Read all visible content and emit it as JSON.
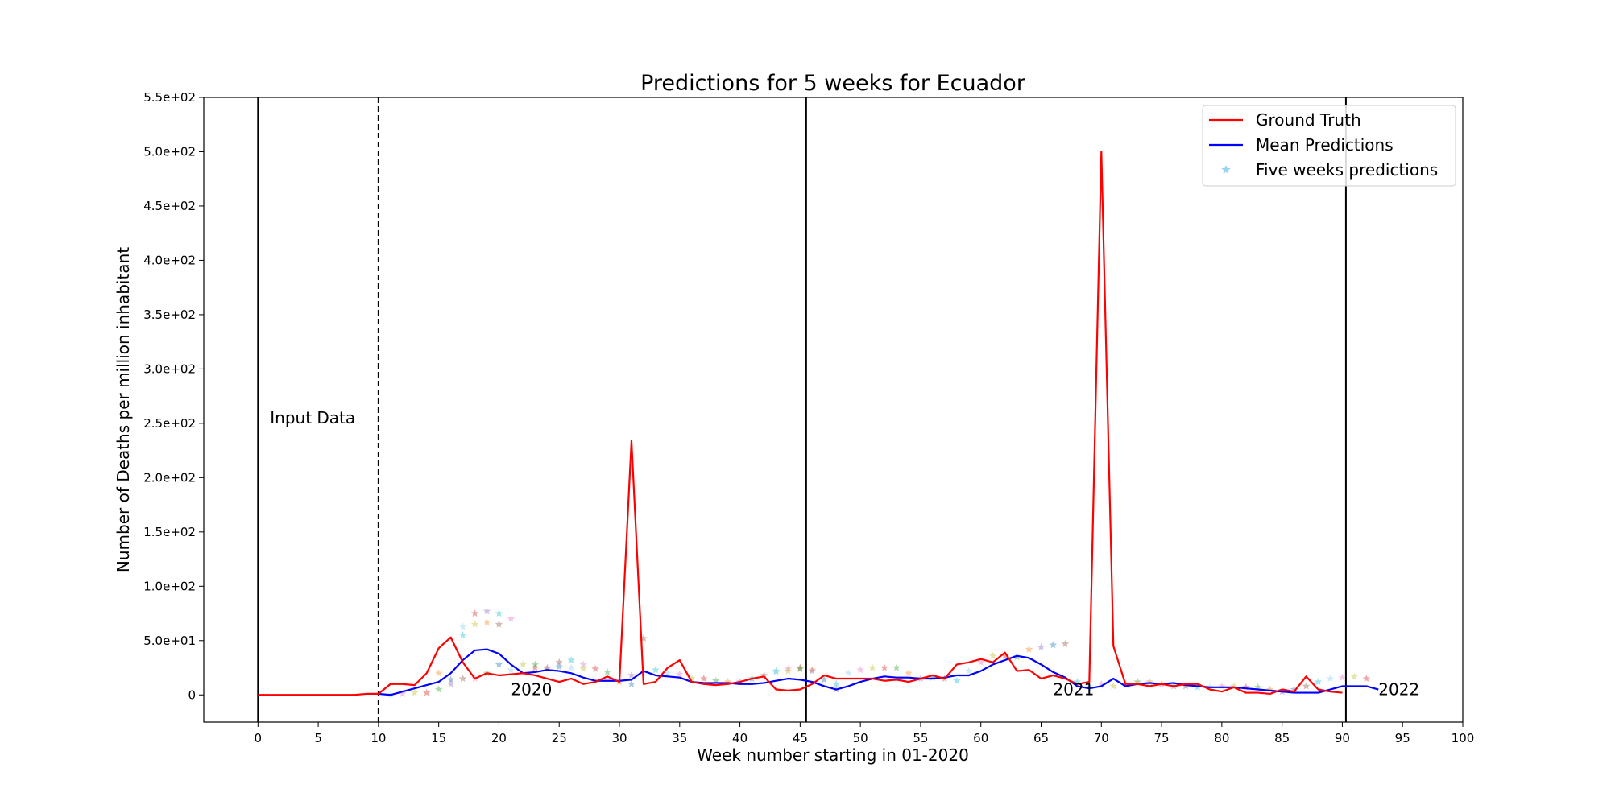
{
  "chart_data": {
    "type": "line",
    "title": "Predictions for 5 weeks for Ecuador",
    "xlabel": "Week number starting in 01-2020",
    "ylabel": "Number of Deaths per million inhabitant",
    "xlim": [
      -4.5,
      100
    ],
    "ylim": [
      -25,
      550
    ],
    "x_ticks": [
      0,
      5,
      10,
      15,
      20,
      25,
      30,
      35,
      40,
      45,
      50,
      55,
      60,
      65,
      70,
      75,
      80,
      85,
      90,
      95,
      100
    ],
    "x_tick_labels": [
      "0",
      "5",
      "10",
      "15",
      "20",
      "25",
      "30",
      "35",
      "40",
      "45",
      "50",
      "55",
      "60",
      "65",
      "70",
      "75",
      "80",
      "85",
      "90",
      "95",
      "100"
    ],
    "y_ticks": [
      0,
      50,
      100,
      150,
      200,
      250,
      300,
      350,
      400,
      450,
      500,
      550
    ],
    "y_tick_labels": [
      "0",
      "5.0e+01",
      "1.0e+02",
      "1.5e+02",
      "2.0e+02",
      "2.5e+02",
      "3.0e+02",
      "3.5e+02",
      "4.0e+02",
      "4.5e+02",
      "5.0e+02",
      "5.5e+02"
    ],
    "grid": false,
    "legend_position": "top-right",
    "vlines": [
      {
        "x": 0,
        "style": "solid"
      },
      {
        "x": 10,
        "style": "dashed"
      },
      {
        "x": 45.5,
        "style": "solid"
      },
      {
        "x": 90.3,
        "style": "solid"
      }
    ],
    "annotations": [
      {
        "text": "Input Data",
        "x": 1,
        "y": 250
      },
      {
        "text": "2020",
        "x": 21,
        "y": 0
      },
      {
        "text": "2021",
        "x": 66,
        "y": 0
      },
      {
        "text": "2022",
        "x": 93,
        "y": 0
      }
    ],
    "series": [
      {
        "name": "Ground Truth",
        "color": "#ff0000",
        "x": [
          0,
          1,
          2,
          3,
          4,
          5,
          6,
          7,
          8,
          9,
          10,
          11,
          12,
          13,
          14,
          15,
          16,
          17,
          18,
          19,
          20,
          21,
          22,
          23,
          24,
          25,
          26,
          27,
          28,
          29,
          30,
          31,
          32,
          33,
          34,
          35,
          36,
          37,
          38,
          39,
          40,
          41,
          42,
          43,
          44,
          45,
          46,
          47,
          48,
          49,
          50,
          51,
          52,
          53,
          54,
          55,
          56,
          57,
          58,
          59,
          60,
          61,
          62,
          63,
          64,
          65,
          66,
          67,
          68,
          69,
          70,
          71,
          72,
          73,
          74,
          75,
          76,
          77,
          78,
          79,
          80,
          81,
          82,
          83,
          84,
          85,
          86,
          87,
          88,
          89,
          90
        ],
        "y": [
          0,
          0,
          0,
          0,
          0,
          0,
          0,
          0,
          0,
          1,
          1,
          10,
          10,
          9,
          20,
          43,
          53,
          30,
          15,
          20,
          18,
          19,
          20,
          18,
          15,
          12,
          15,
          10,
          12,
          17,
          12,
          234,
          10,
          12,
          25,
          32,
          12,
          10,
          9,
          10,
          12,
          15,
          17,
          5,
          4,
          5,
          10,
          18,
          15,
          15,
          15,
          15,
          13,
          14,
          12,
          15,
          18,
          15,
          28,
          30,
          33,
          30,
          39,
          22,
          23,
          15,
          18,
          15,
          10,
          12,
          500,
          45,
          10,
          10,
          8,
          10,
          8,
          10,
          10,
          5,
          3,
          7,
          2,
          2,
          1,
          5,
          3,
          17,
          5,
          3,
          2
        ]
      },
      {
        "name": "Mean Predictions",
        "color": "#0000ff",
        "x": [
          10,
          11,
          12,
          13,
          14,
          15,
          16,
          17,
          18,
          19,
          20,
          21,
          22,
          23,
          24,
          25,
          26,
          27,
          28,
          29,
          30,
          31,
          32,
          33,
          34,
          35,
          36,
          37,
          38,
          39,
          40,
          41,
          42,
          43,
          44,
          45,
          46,
          47,
          48,
          49,
          50,
          51,
          52,
          53,
          54,
          55,
          56,
          57,
          58,
          59,
          60,
          61,
          62,
          63,
          64,
          65,
          66,
          67,
          68,
          69,
          70,
          71,
          72,
          73,
          74,
          75,
          76,
          77,
          78,
          79,
          80,
          81,
          82,
          83,
          84,
          85,
          86,
          87,
          88,
          89,
          90,
          91,
          92,
          93
        ],
        "y": [
          1,
          0,
          3,
          6,
          9,
          12,
          20,
          32,
          41,
          42,
          38,
          28,
          20,
          21,
          23,
          22,
          20,
          16,
          13,
          13,
          13,
          14,
          22,
          18,
          17,
          16,
          12,
          11,
          11,
          11,
          10,
          10,
          11,
          13,
          15,
          14,
          12,
          8,
          5,
          8,
          12,
          15,
          17,
          16,
          16,
          15,
          15,
          16,
          18,
          18,
          22,
          28,
          32,
          36,
          34,
          28,
          21,
          16,
          8,
          6,
          8,
          15,
          8,
          10,
          11,
          10,
          11,
          9,
          8,
          7,
          7,
          7,
          6,
          5,
          4,
          3,
          2,
          2,
          2,
          5,
          8,
          8,
          8,
          5
        ]
      },
      {
        "name": "Five weeks predictions",
        "color": "#87ceeb",
        "x": [
          11,
          12,
          13,
          14,
          15,
          15,
          16,
          16,
          17,
          17,
          17,
          18,
          18,
          18,
          19,
          19,
          19,
          20,
          20,
          20,
          21,
          21,
          22,
          23,
          23,
          24,
          24,
          25,
          25,
          26,
          26,
          27,
          27,
          28,
          29,
          30,
          31,
          31,
          32,
          33,
          34,
          35,
          36,
          37,
          38,
          39,
          40,
          41,
          42,
          43,
          43,
          44,
          44,
          45,
          45,
          46,
          46,
          47,
          48,
          48,
          49,
          50,
          51,
          52,
          53,
          54,
          55,
          56,
          57,
          58,
          59,
          60,
          61,
          62,
          63,
          64,
          65,
          66,
          67,
          68,
          69,
          70,
          71,
          72,
          73,
          74,
          75,
          76,
          77,
          78,
          79,
          80,
          81,
          82,
          83,
          84,
          85,
          86,
          87,
          88,
          89,
          90,
          91,
          92
        ],
        "y": [
          0,
          1,
          2,
          2,
          5,
          20,
          10,
          14,
          15,
          55,
          63,
          15,
          65,
          75,
          20,
          67,
          77,
          28,
          65,
          75,
          23,
          70,
          28,
          25,
          28,
          24,
          25,
          26,
          30,
          32,
          25,
          28,
          24,
          24,
          21,
          12,
          18,
          10,
          52,
          23,
          20,
          19,
          15,
          15,
          13,
          12,
          12,
          15,
          18,
          22,
          21,
          24,
          22,
          25,
          24,
          23,
          22,
          14,
          5,
          10,
          20,
          23,
          25,
          25,
          25,
          20,
          15,
          16,
          15,
          13,
          22,
          30,
          36,
          36,
          35,
          42,
          44,
          46,
          47,
          12,
          8,
          10,
          8,
          10,
          12,
          12,
          10,
          8,
          8,
          7,
          7,
          8,
          8,
          7,
          7,
          5,
          3,
          5,
          8,
          12,
          15,
          16,
          17,
          15
        ]
      }
    ]
  }
}
